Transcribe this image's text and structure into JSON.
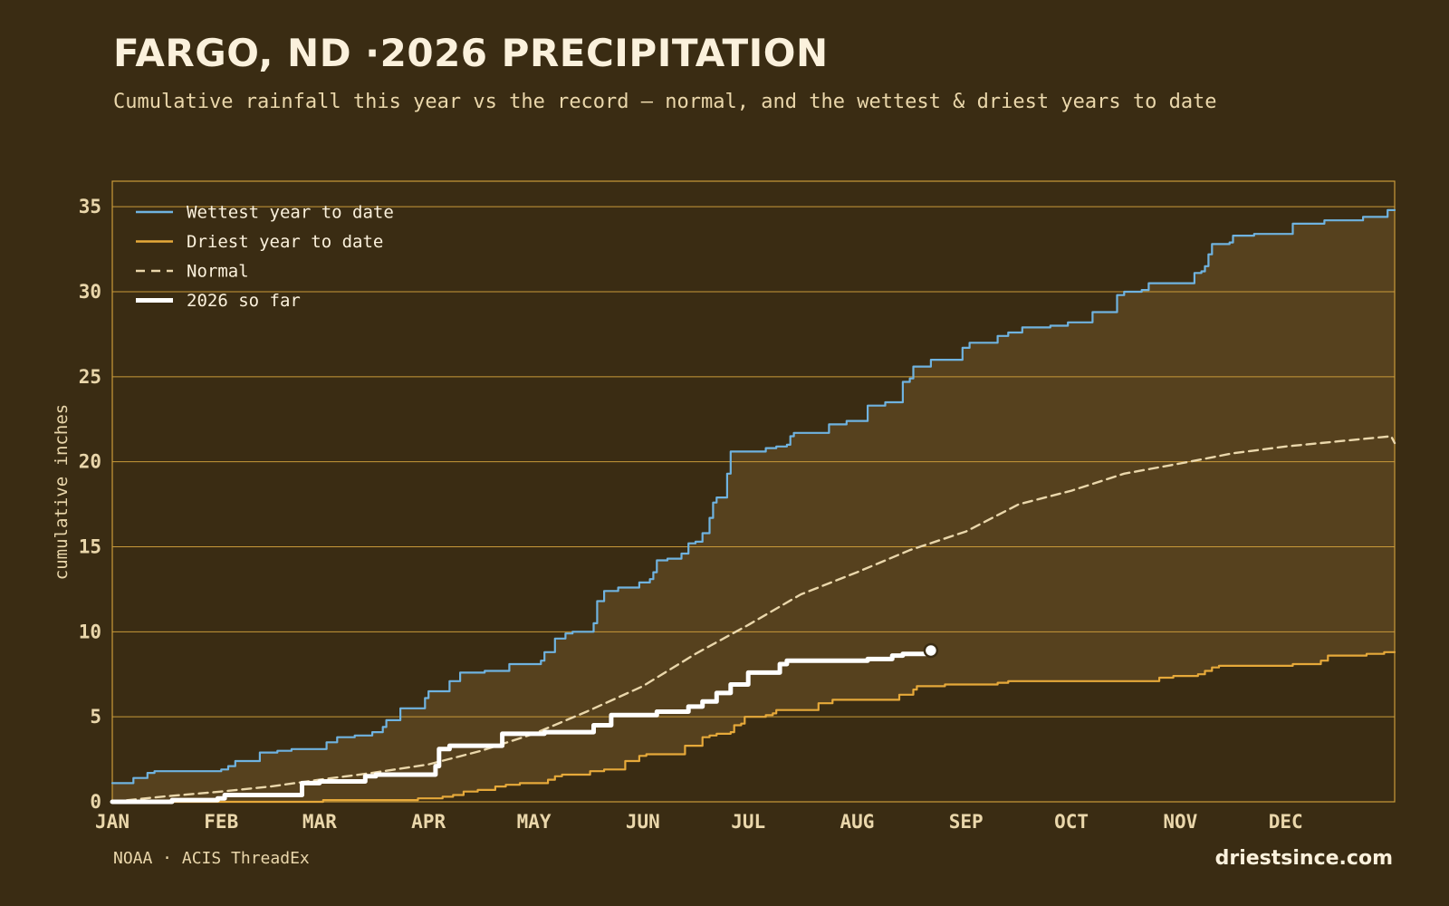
{
  "header": {
    "title": "FARGO, ND ·2026 PRECIPITATION",
    "subtitle": "Cumulative rainfall this year vs the record — normal, and the wettest & driest years to date"
  },
  "footer": {
    "source": "NOAA · ACIS ThreadEx",
    "brand": "driestsince.com"
  },
  "colors": {
    "background": "#3a2c13",
    "band": "#56411e",
    "grid": "#c99a3a",
    "wettest": "#6fb3e0",
    "driest": "#e6a93a",
    "normal": "#ead7ab",
    "current": "#ffffff"
  },
  "chart_data": {
    "type": "line",
    "title": "FARGO, ND ·2026 PRECIPITATION",
    "subtitle": "Cumulative rainfall this year vs the record — normal, and the wettest & driest years to date",
    "xlabel": "",
    "ylabel": "cumulative inches",
    "x_unit": "day of year",
    "xlim": [
      1,
      366
    ],
    "ylim": [
      0,
      36.5
    ],
    "y_ticks": [
      0,
      5,
      10,
      15,
      20,
      25,
      30,
      35
    ],
    "x_ticks": [
      {
        "label": "JAN",
        "day": 1
      },
      {
        "label": "FEB",
        "day": 32
      },
      {
        "label": "MAR",
        "day": 60
      },
      {
        "label": "APR",
        "day": 91
      },
      {
        "label": "MAY",
        "day": 121
      },
      {
        "label": "JUN",
        "day": 152
      },
      {
        "label": "JUL",
        "day": 182
      },
      {
        "label": "AUG",
        "day": 213
      },
      {
        "label": "SEP",
        "day": 244
      },
      {
        "label": "OCT",
        "day": 274
      },
      {
        "label": "NOV",
        "day": 305
      },
      {
        "label": "DEC",
        "day": 335
      }
    ],
    "grid": true,
    "legend_position": "top-left",
    "band": {
      "upper": "Wettest year to date",
      "lower": "Driest year to date"
    },
    "series": [
      {
        "name": "Wettest year to date",
        "style": "step",
        "points": [
          [
            1,
            1.1
          ],
          [
            6,
            1.1
          ],
          [
            7,
            1.4
          ],
          [
            10,
            1.4
          ],
          [
            11,
            1.7
          ],
          [
            13,
            1.8
          ],
          [
            25,
            1.8
          ],
          [
            32,
            1.9
          ],
          [
            34,
            2.1
          ],
          [
            36,
            2.4
          ],
          [
            40,
            2.4
          ],
          [
            43,
            2.9
          ],
          [
            48,
            3.0
          ],
          [
            52,
            3.1
          ],
          [
            60,
            3.1
          ],
          [
            62,
            3.5
          ],
          [
            65,
            3.8
          ],
          [
            70,
            3.9
          ],
          [
            75,
            4.1
          ],
          [
            78,
            4.4
          ],
          [
            79,
            4.8
          ],
          [
            82,
            4.8
          ],
          [
            83,
            5.5
          ],
          [
            88,
            5.5
          ],
          [
            90,
            6.1
          ],
          [
            91,
            6.5
          ],
          [
            96,
            6.5
          ],
          [
            97,
            7.1
          ],
          [
            99,
            7.1
          ],
          [
            100,
            7.6
          ],
          [
            106,
            7.6
          ],
          [
            107,
            7.7
          ],
          [
            113,
            7.7
          ],
          [
            114,
            8.1
          ],
          [
            121,
            8.1
          ],
          [
            123,
            8.3
          ],
          [
            124,
            8.8
          ],
          [
            126,
            8.8
          ],
          [
            127,
            9.6
          ],
          [
            129,
            9.6
          ],
          [
            130,
            9.9
          ],
          [
            132,
            10.0
          ],
          [
            137,
            10.0
          ],
          [
            138,
            10.5
          ],
          [
            139,
            11.8
          ],
          [
            141,
            12.4
          ],
          [
            145,
            12.6
          ],
          [
            149,
            12.6
          ],
          [
            151,
            12.9
          ],
          [
            154,
            13.1
          ],
          [
            155,
            13.5
          ],
          [
            156,
            14.2
          ],
          [
            159,
            14.3
          ],
          [
            163,
            14.6
          ],
          [
            165,
            15.2
          ],
          [
            167,
            15.3
          ],
          [
            169,
            15.8
          ],
          [
            171,
            16.7
          ],
          [
            172,
            17.6
          ],
          [
            173,
            17.9
          ],
          [
            175,
            17.9
          ],
          [
            176,
            19.3
          ],
          [
            177,
            20.6
          ],
          [
            185,
            20.6
          ],
          [
            187,
            20.8
          ],
          [
            190,
            20.9
          ],
          [
            193,
            21.0
          ],
          [
            194,
            21.5
          ],
          [
            195,
            21.7
          ],
          [
            204,
            21.7
          ],
          [
            205,
            22.2
          ],
          [
            209,
            22.2
          ],
          [
            210,
            22.4
          ],
          [
            214,
            22.4
          ],
          [
            216,
            23.3
          ],
          [
            219,
            23.3
          ],
          [
            221,
            23.5
          ],
          [
            225,
            23.5
          ],
          [
            226,
            24.7
          ],
          [
            228,
            24.9
          ],
          [
            229,
            25.6
          ],
          [
            232,
            25.6
          ],
          [
            234,
            26.0
          ],
          [
            242,
            26.0
          ],
          [
            243,
            26.7
          ],
          [
            245,
            27.0
          ],
          [
            252,
            27.0
          ],
          [
            253,
            27.4
          ],
          [
            256,
            27.6
          ],
          [
            259,
            27.6
          ],
          [
            260,
            27.9
          ],
          [
            266,
            27.9
          ],
          [
            268,
            28.0
          ],
          [
            271,
            28.0
          ],
          [
            273,
            28.2
          ],
          [
            278,
            28.2
          ],
          [
            280,
            28.8
          ],
          [
            284,
            28.8
          ],
          [
            287,
            29.8
          ],
          [
            289,
            30.0
          ],
          [
            294,
            30.1
          ],
          [
            296,
            30.5
          ],
          [
            307,
            30.5
          ],
          [
            309,
            31.1
          ],
          [
            311,
            31.2
          ],
          [
            312,
            31.5
          ],
          [
            313,
            32.2
          ],
          [
            314,
            32.8
          ],
          [
            319,
            32.9
          ],
          [
            320,
            33.3
          ],
          [
            324,
            33.3
          ],
          [
            326,
            33.4
          ],
          [
            336,
            33.4
          ],
          [
            337,
            34.0
          ],
          [
            344,
            34.0
          ],
          [
            346,
            34.2
          ],
          [
            354,
            34.2
          ],
          [
            357,
            34.4
          ],
          [
            363,
            34.4
          ],
          [
            364,
            34.8
          ],
          [
            366,
            34.8
          ]
        ]
      },
      {
        "name": "Driest year to date",
        "style": "step",
        "points": [
          [
            1,
            0.0
          ],
          [
            60,
            0.0
          ],
          [
            61,
            0.1
          ],
          [
            86,
            0.1
          ],
          [
            88,
            0.2
          ],
          [
            95,
            0.3
          ],
          [
            98,
            0.4
          ],
          [
            101,
            0.6
          ],
          [
            105,
            0.7
          ],
          [
            110,
            0.9
          ],
          [
            113,
            1.0
          ],
          [
            117,
            1.1
          ],
          [
            124,
            1.1
          ],
          [
            125,
            1.3
          ],
          [
            127,
            1.5
          ],
          [
            129,
            1.6
          ],
          [
            136,
            1.6
          ],
          [
            137,
            1.8
          ],
          [
            141,
            1.9
          ],
          [
            146,
            1.9
          ],
          [
            147,
            2.4
          ],
          [
            150,
            2.4
          ],
          [
            151,
            2.7
          ],
          [
            153,
            2.8
          ],
          [
            163,
            2.8
          ],
          [
            164,
            3.3
          ],
          [
            168,
            3.3
          ],
          [
            169,
            3.8
          ],
          [
            171,
            3.9
          ],
          [
            173,
            4.0
          ],
          [
            177,
            4.1
          ],
          [
            178,
            4.5
          ],
          [
            180,
            4.6
          ],
          [
            181,
            5.0
          ],
          [
            187,
            5.1
          ],
          [
            189,
            5.2
          ],
          [
            190,
            5.4
          ],
          [
            195,
            5.4
          ],
          [
            201,
            5.4
          ],
          [
            202,
            5.8
          ],
          [
            205,
            5.8
          ],
          [
            206,
            6.0
          ],
          [
            224,
            6.0
          ],
          [
            225,
            6.3
          ],
          [
            228,
            6.3
          ],
          [
            229,
            6.6
          ],
          [
            230,
            6.8
          ],
          [
            237,
            6.8
          ],
          [
            238,
            6.9
          ],
          [
            249,
            6.9
          ],
          [
            253,
            7.0
          ],
          [
            256,
            7.1
          ],
          [
            295,
            7.1
          ],
          [
            299,
            7.3
          ],
          [
            303,
            7.4
          ],
          [
            310,
            7.5
          ],
          [
            312,
            7.7
          ],
          [
            314,
            7.9
          ],
          [
            316,
            8.0
          ],
          [
            336,
            8.0
          ],
          [
            337,
            8.1
          ],
          [
            343,
            8.1
          ],
          [
            345,
            8.3
          ],
          [
            347,
            8.6
          ],
          [
            356,
            8.6
          ],
          [
            358,
            8.7
          ],
          [
            363,
            8.8
          ],
          [
            366,
            8.8
          ]
        ]
      },
      {
        "name": "Normal",
        "style": "dashed",
        "points": [
          [
            1,
            0.0
          ],
          [
            15,
            0.3
          ],
          [
            32,
            0.6
          ],
          [
            46,
            0.9
          ],
          [
            60,
            1.3
          ],
          [
            75,
            1.7
          ],
          [
            91,
            2.2
          ],
          [
            106,
            3.0
          ],
          [
            121,
            4.0
          ],
          [
            136,
            5.3
          ],
          [
            152,
            6.8
          ],
          [
            167,
            8.7
          ],
          [
            182,
            10.4
          ],
          [
            197,
            12.2
          ],
          [
            213,
            13.5
          ],
          [
            228,
            14.8
          ],
          [
            244,
            15.9
          ],
          [
            259,
            17.5
          ],
          [
            274,
            18.3
          ],
          [
            289,
            19.3
          ],
          [
            305,
            19.9
          ],
          [
            320,
            20.5
          ],
          [
            335,
            20.9
          ],
          [
            350,
            21.2
          ],
          [
            365,
            21.5
          ],
          [
            366,
            21.1
          ]
        ]
      },
      {
        "name": "2026 so far",
        "style": "step-thick",
        "points": [
          [
            1,
            0.0
          ],
          [
            18,
            0.1
          ],
          [
            31,
            0.2
          ],
          [
            33,
            0.4
          ],
          [
            54,
            0.4
          ],
          [
            55,
            1.1
          ],
          [
            60,
            1.2
          ],
          [
            72,
            1.2
          ],
          [
            73,
            1.5
          ],
          [
            76,
            1.6
          ],
          [
            92,
            1.6
          ],
          [
            93,
            2.1
          ],
          [
            94,
            3.1
          ],
          [
            96,
            3.1
          ],
          [
            97,
            3.3
          ],
          [
            111,
            3.3
          ],
          [
            112,
            4.0
          ],
          [
            121,
            4.0
          ],
          [
            124,
            4.1
          ],
          [
            136,
            4.1
          ],
          [
            138,
            4.5
          ],
          [
            142,
            4.5
          ],
          [
            143,
            5.1
          ],
          [
            154,
            5.1
          ],
          [
            156,
            5.3
          ],
          [
            164,
            5.3
          ],
          [
            165,
            5.6
          ],
          [
            168,
            5.6
          ],
          [
            169,
            5.9
          ],
          [
            172,
            5.9
          ],
          [
            173,
            6.4
          ],
          [
            176,
            6.4
          ],
          [
            177,
            6.9
          ],
          [
            181,
            6.9
          ],
          [
            182,
            7.6
          ],
          [
            189,
            7.6
          ],
          [
            191,
            8.1
          ],
          [
            193,
            8.3
          ],
          [
            214,
            8.3
          ],
          [
            216,
            8.4
          ],
          [
            221,
            8.4
          ],
          [
            223,
            8.6
          ],
          [
            225,
            8.6
          ],
          [
            226,
            8.7
          ],
          [
            233,
            8.7
          ],
          [
            234,
            8.9
          ]
        ],
        "end_marker": {
          "day": 234,
          "value": 8.9
        }
      }
    ]
  }
}
